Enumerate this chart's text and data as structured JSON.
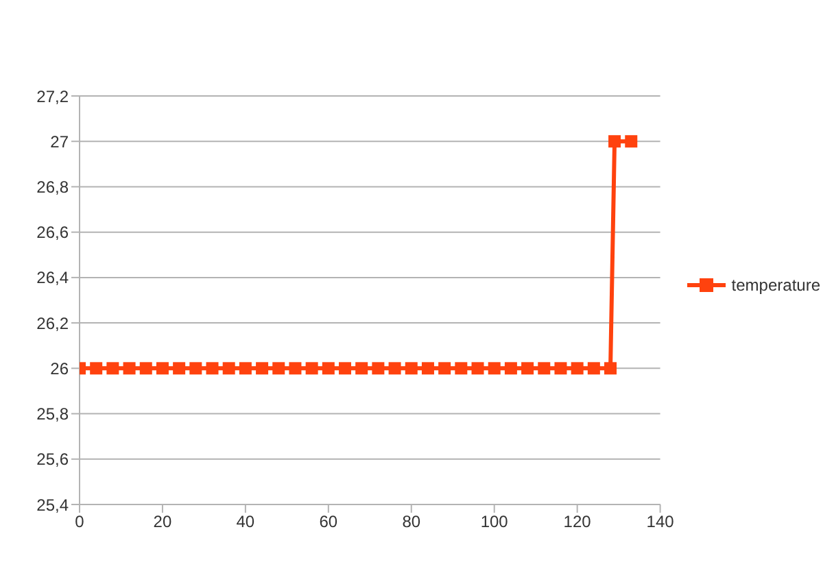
{
  "chart_data": {
    "type": "line",
    "x": [
      0,
      4,
      8,
      12,
      16,
      20,
      24,
      28,
      32,
      36,
      40,
      44,
      48,
      52,
      56,
      60,
      64,
      68,
      72,
      76,
      80,
      84,
      88,
      92,
      96,
      100,
      104,
      108,
      112,
      116,
      120,
      124,
      128,
      129,
      133
    ],
    "series": [
      {
        "name": "temperature",
        "color": "#ff420e",
        "values": [
          26,
          26,
          26,
          26,
          26,
          26,
          26,
          26,
          26,
          26,
          26,
          26,
          26,
          26,
          26,
          26,
          26,
          26,
          26,
          26,
          26,
          26,
          26,
          26,
          26,
          26,
          26,
          26,
          26,
          26,
          26,
          26,
          26,
          27,
          27
        ]
      }
    ],
    "xlim": [
      0,
      140
    ],
    "xticks": [
      0,
      20,
      40,
      60,
      80,
      100,
      120,
      140
    ],
    "ylim": [
      25.4,
      27.2
    ],
    "yticks": [
      {
        "value": 25.4,
        "label": "25,4"
      },
      {
        "value": 25.6,
        "label": "25,6"
      },
      {
        "value": 25.8,
        "label": "25,8"
      },
      26,
      {
        "value": 26.2,
        "label": "26,2"
      },
      {
        "value": 26.4,
        "label": "26,4"
      },
      {
        "value": 26.6,
        "label": "26,6"
      },
      {
        "value": 26.8,
        "label": "26,8"
      },
      27,
      {
        "value": 27.2,
        "label": "27,2"
      }
    ],
    "grid": "y",
    "legend": "right",
    "marker": "square",
    "line_style": "solid"
  }
}
